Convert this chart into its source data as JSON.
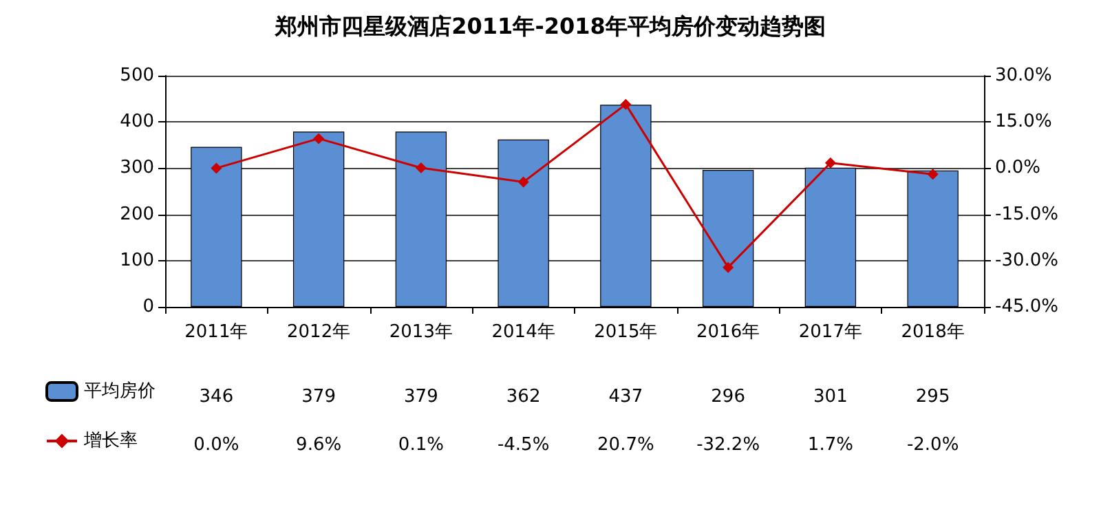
{
  "chart_data": {
    "type": "bar",
    "title": "郑州市四星级酒店2011年-2018年平均房价变动趋势图",
    "categories": [
      "2011年",
      "2012年",
      "2013年",
      "2014年",
      "2015年",
      "2016年",
      "2017年",
      "2018年"
    ],
    "series": [
      {
        "name": "平均房价",
        "color": "#5b8fd3",
        "values": [
          346,
          379,
          379,
          362,
          437,
          296,
          301,
          295
        ],
        "value_labels": [
          "346",
          "379",
          "379",
          "362",
          "437",
          "296",
          "301",
          "295"
        ]
      },
      {
        "name": "增长率",
        "type": "line",
        "axis": "y2",
        "color": "#cc0000",
        "marker": "diamond",
        "values": [
          0.0,
          9.6,
          0.1,
          -4.5,
          20.7,
          -32.2,
          1.7,
          -2.0
        ],
        "value_labels": [
          "0.0%",
          "9.6%",
          "0.1%",
          "-4.5%",
          "20.7%",
          "-32.2%",
          "1.7%",
          "-2.0%"
        ]
      }
    ],
    "ylim": [
      0,
      500
    ],
    "yticks": [
      0,
      100,
      200,
      300,
      400,
      500
    ],
    "y2lim": [
      -45,
      30
    ],
    "y2ticks": [
      {
        "value": -45,
        "label": "-45.0%"
      },
      {
        "value": -30,
        "label": "-30.0%"
      },
      {
        "value": -15,
        "label": "-15.0%"
      },
      {
        "value": 0,
        "label": "0.0%"
      },
      {
        "value": 15,
        "label": "15.0%"
      },
      {
        "value": 30,
        "label": "30.0%"
      }
    ],
    "grid": "y",
    "legend": "bottom left"
  }
}
